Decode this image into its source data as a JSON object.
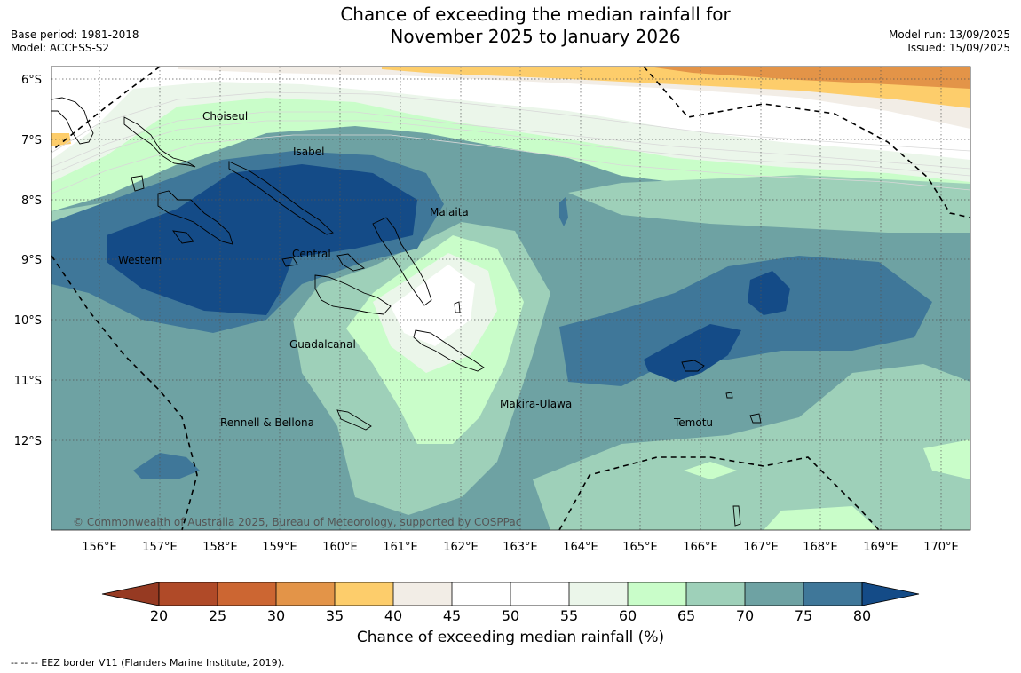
{
  "header": {
    "title_line1": "Chance of exceeding the median rainfall for",
    "title_line2": "November 2025 to January 2026",
    "base_period": "Base period: 1981-2018",
    "model": "Model: ACCESS-S2",
    "model_run": "Model run: 13/09/2025",
    "issued": "Issued: 15/09/2025"
  },
  "map": {
    "lat_labels": [
      "6°S",
      "7°S",
      "8°S",
      "9°S",
      "10°S",
      "11°S",
      "12°S"
    ],
    "lon_labels": [
      "156°E",
      "157°E",
      "158°E",
      "159°E",
      "160°E",
      "161°E",
      "162°E",
      "163°E",
      "164°E",
      "165°E",
      "166°E",
      "167°E",
      "168°E",
      "169°E",
      "170°E"
    ],
    "places": {
      "choiseul": "Choiseul",
      "isabel": "Isabel",
      "malaita": "Malaita",
      "western": "Western",
      "central": "Central",
      "guadalcanal": "Guadalcanal",
      "makira": "Makira-Ulawa",
      "rennell": "Rennell & Bellona",
      "temotu": "Temotu"
    },
    "copyright": "© Commonwealth of Australia 2025, Bureau of Meteorology, supported by COSPPac"
  },
  "colorbar": {
    "ticks": [
      "20",
      "25",
      "30",
      "35",
      "40",
      "45",
      "50",
      "55",
      "60",
      "65",
      "70",
      "75",
      "80"
    ],
    "colors": {
      "below_20": "#963a22",
      "c20_25": "#b04a28",
      "c25_30": "#cc6632",
      "c30_35": "#e39448",
      "c35_40": "#fdcd6b",
      "c40_45": "#f2ede6",
      "c45_55": "#ffffff",
      "c55_60": "#ebf6ea",
      "c60_65": "#c9fdc9",
      "c65_70": "#9ed0b9",
      "c70_75": "#6ea2a3",
      "c75_80": "#3f7799",
      "above_80": "#144b87"
    },
    "label": "Chance of exceeding median rainfall (%)"
  },
  "footnote": "--  --  -- EEZ border V11 (Flanders Marine Institute, 2019)."
}
